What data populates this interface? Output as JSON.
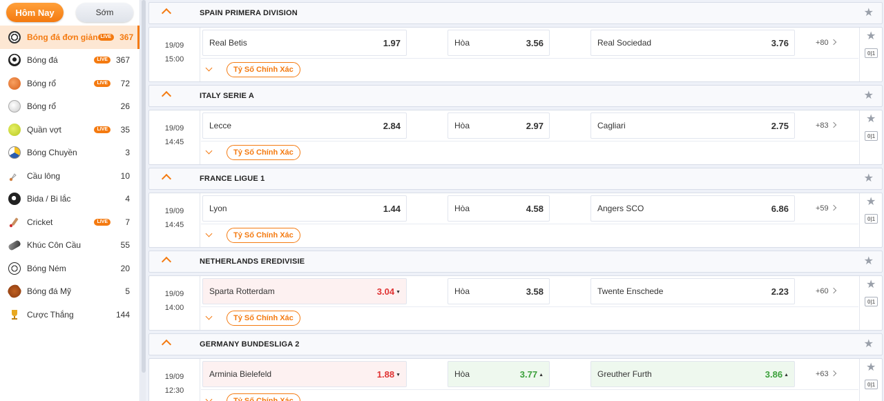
{
  "sidebar": {
    "tabs": [
      {
        "label": "Hôm Nay",
        "active": true
      },
      {
        "label": "Sớm",
        "active": false
      }
    ],
    "items": [
      {
        "label": "Bóng đá đơn giản",
        "live": true,
        "count": "367",
        "icon": "soccer-ball-icon",
        "selected": true
      },
      {
        "label": "Bóng đá",
        "live": true,
        "count": "367",
        "icon": "soccer-ball-icon"
      },
      {
        "label": "Bóng rổ",
        "live": true,
        "count": "72",
        "icon": "basketball-icon"
      },
      {
        "label": "Bóng rổ",
        "live": false,
        "count": "26",
        "icon": "baseball-icon"
      },
      {
        "label": "Quần vợt",
        "live": true,
        "count": "35",
        "icon": "tennis-ball-icon"
      },
      {
        "label": "Bóng Chuyền",
        "live": false,
        "count": "3",
        "icon": "volleyball-icon"
      },
      {
        "label": "Cầu lông",
        "live": false,
        "count": "10",
        "icon": "shuttlecock-icon"
      },
      {
        "label": "Bida / Bi lắc",
        "live": false,
        "count": "4",
        "icon": "billiard-ball-icon"
      },
      {
        "label": "Cricket",
        "live": true,
        "count": "7",
        "icon": "cricket-bat-icon"
      },
      {
        "label": "Khúc Côn Cầu",
        "live": false,
        "count": "55",
        "icon": "hockey-puck-icon"
      },
      {
        "label": "Bóng Ném",
        "live": false,
        "count": "20",
        "icon": "handball-icon"
      },
      {
        "label": "Bóng đá Mỹ",
        "live": false,
        "count": "5",
        "icon": "american-football-icon"
      },
      {
        "label": "Cược Thắng",
        "live": false,
        "count": "144",
        "icon": "trophy-icon"
      }
    ],
    "live_label": "LIVE"
  },
  "main": {
    "exact_score_label": "Tỷ Số Chính Xác",
    "score_icon_text": "0|1",
    "leagues": [
      {
        "name": "SPAIN PRIMERA DIVISION",
        "match": {
          "date": "19/09",
          "time": "15:00",
          "home": "Real Betis",
          "home_odd": "1.97",
          "home_trend": "",
          "draw": "Hòa",
          "draw_odd": "3.56",
          "draw_trend": "",
          "away": "Real Sociedad",
          "away_odd": "3.76",
          "away_trend": "",
          "more": "+80"
        }
      },
      {
        "name": "ITALY SERIE A",
        "match": {
          "date": "19/09",
          "time": "14:45",
          "home": "Lecce",
          "home_odd": "2.84",
          "home_trend": "",
          "draw": "Hòa",
          "draw_odd": "2.97",
          "draw_trend": "",
          "away": "Cagliari",
          "away_odd": "2.75",
          "away_trend": "",
          "more": "+83"
        }
      },
      {
        "name": "FRANCE LIGUE 1",
        "match": {
          "date": "19/09",
          "time": "14:45",
          "home": "Lyon",
          "home_odd": "1.44",
          "home_trend": "",
          "draw": "Hòa",
          "draw_odd": "4.58",
          "draw_trend": "",
          "away": "Angers SCO",
          "away_odd": "6.86",
          "away_trend": "",
          "more": "+59"
        }
      },
      {
        "name": "NETHERLANDS EREDIVISIE",
        "match": {
          "date": "19/09",
          "time": "14:00",
          "home": "Sparta Rotterdam",
          "home_odd": "3.04",
          "home_trend": "down",
          "draw": "Hòa",
          "draw_odd": "3.58",
          "draw_trend": "",
          "away": "Twente Enschede",
          "away_odd": "2.23",
          "away_trend": "",
          "more": "+60"
        }
      },
      {
        "name": "GERMANY BUNDESLIGA 2",
        "match": {
          "date": "19/09",
          "time": "12:30",
          "home": "Arminia Bielefeld",
          "home_odd": "1.88",
          "home_trend": "down",
          "draw": "Hòa",
          "draw_odd": "3.77",
          "draw_trend": "up",
          "away": "Greuther Furth",
          "away_odd": "3.86",
          "away_trend": "up",
          "more": "+63"
        }
      }
    ]
  },
  "colors": {
    "accent": "#f47a10",
    "odd_down": "#e03333",
    "odd_up": "#3aa03a"
  }
}
